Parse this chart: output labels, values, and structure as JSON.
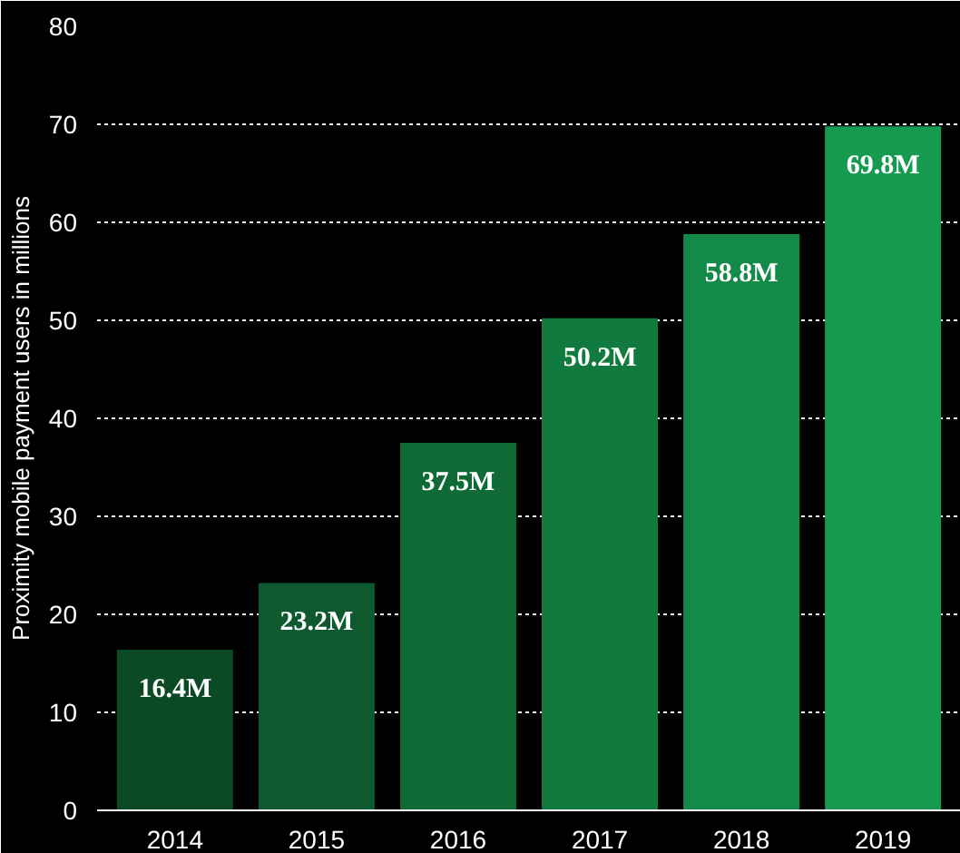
{
  "chart_data": {
    "type": "bar",
    "ylabel": "Proximity mobile payment users in millions",
    "categories": [
      "2014",
      "2015",
      "2016",
      "2017",
      "2018",
      "2019"
    ],
    "values": [
      16.4,
      23.2,
      37.5,
      50.2,
      58.8,
      69.8
    ],
    "value_labels": [
      "16.4M",
      "23.2M",
      "37.5M",
      "50.2M",
      "58.8M",
      "69.8M"
    ],
    "colors": [
      "#0c4a25",
      "#0e5a2e",
      "#106a36",
      "#117a3e",
      "#138a47",
      "#169a50"
    ],
    "ylim": [
      0,
      80
    ],
    "yticks": [
      0,
      10,
      20,
      30,
      40,
      50,
      60,
      70,
      80
    ],
    "grid": "y"
  }
}
